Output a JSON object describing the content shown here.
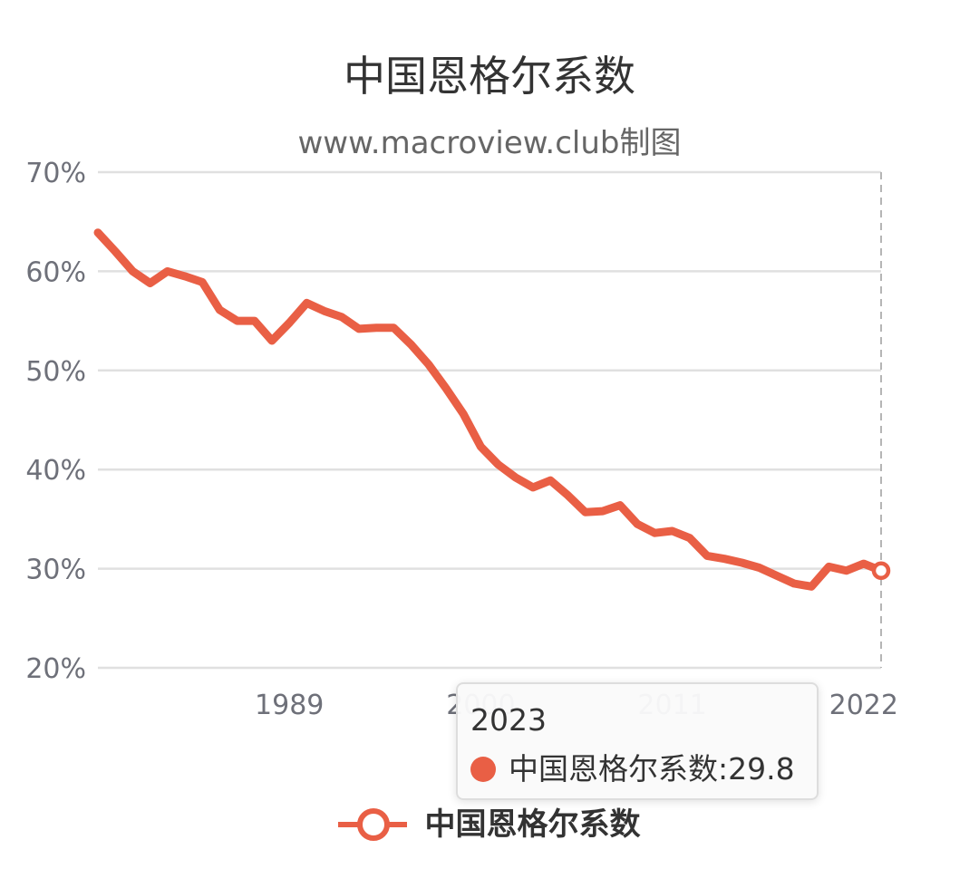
{
  "chart_data": {
    "type": "line",
    "title": "中国恩格尔系数",
    "subtitle": "www.macroview.club制图",
    "xlabel": "",
    "ylabel": "",
    "x": [
      1978,
      1979,
      1980,
      1981,
      1982,
      1983,
      1984,
      1985,
      1986,
      1987,
      1988,
      1989,
      1990,
      1991,
      1992,
      1993,
      1994,
      1995,
      1996,
      1997,
      1998,
      1999,
      2000,
      2001,
      2002,
      2003,
      2004,
      2005,
      2006,
      2007,
      2008,
      2009,
      2010,
      2011,
      2012,
      2013,
      2014,
      2015,
      2016,
      2017,
      2018,
      2019,
      2020,
      2021,
      2022,
      2023
    ],
    "x_ticks": [
      "1989",
      "2000",
      "2011",
      "2022"
    ],
    "y_ticks": [
      "20%",
      "30%",
      "40%",
      "50%",
      "60%",
      "70%"
    ],
    "ylim": [
      20,
      70
    ],
    "grid": true,
    "legend_position": "bottom",
    "series": [
      {
        "name": "中国恩格尔系数",
        "color": "#e95f45",
        "values": [
          63.9,
          62.0,
          60.0,
          58.8,
          60.0,
          59.5,
          58.9,
          56.1,
          55.0,
          55.0,
          53.0,
          54.8,
          56.8,
          56.0,
          55.4,
          54.2,
          54.3,
          54.3,
          52.6,
          50.6,
          48.2,
          45.6,
          42.3,
          40.5,
          39.2,
          38.2,
          38.9,
          37.4,
          35.7,
          35.8,
          36.4,
          34.5,
          33.6,
          33.8,
          33.1,
          31.3,
          31.0,
          30.6,
          30.1,
          29.3,
          28.5,
          28.2,
          30.2,
          29.8,
          30.5,
          29.8
        ]
      }
    ]
  },
  "tooltip": {
    "title": "2023",
    "series_label": "中国恩格尔系数",
    "value": "29.8"
  }
}
